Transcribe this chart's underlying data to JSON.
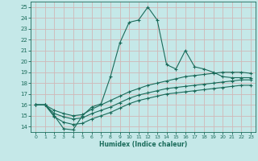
{
  "xlabel": "Humidex (Indice chaleur)",
  "ylabel": "",
  "xlim": [
    -0.5,
    23.5
  ],
  "ylim": [
    13.5,
    25.5
  ],
  "xticks": [
    0,
    1,
    2,
    3,
    4,
    5,
    6,
    7,
    8,
    9,
    10,
    11,
    12,
    13,
    14,
    15,
    16,
    17,
    18,
    19,
    20,
    21,
    22,
    23
  ],
  "yticks": [
    14,
    15,
    16,
    17,
    18,
    19,
    20,
    21,
    22,
    23,
    24,
    25
  ],
  "bg_color": "#c5e8e8",
  "line_color": "#1a6b5a",
  "grid_color": "#d0b8b8",
  "line1_x": [
    0,
    1,
    2,
    3,
    4,
    5,
    6,
    7,
    8,
    9,
    10,
    11,
    12,
    13,
    14,
    15,
    16,
    17,
    18,
    19,
    20,
    21,
    22,
    23
  ],
  "line1_y": [
    16.0,
    16.0,
    15.0,
    13.8,
    13.7,
    15.0,
    15.8,
    16.1,
    18.6,
    21.7,
    23.6,
    23.8,
    25.0,
    23.8,
    19.7,
    19.3,
    21.0,
    19.5,
    19.3,
    19.0,
    18.6,
    18.5,
    18.5,
    18.5
  ],
  "line2_x": [
    0,
    1,
    2,
    3,
    4,
    5,
    6,
    7,
    8,
    9,
    10,
    11,
    12,
    13,
    14,
    15,
    16,
    17,
    18,
    19,
    20,
    21,
    22,
    23
  ],
  "line2_y": [
    16.0,
    16.0,
    15.5,
    15.2,
    15.0,
    15.1,
    15.6,
    16.0,
    16.4,
    16.8,
    17.2,
    17.5,
    17.8,
    18.0,
    18.2,
    18.4,
    18.6,
    18.7,
    18.8,
    18.9,
    19.0,
    19.0,
    19.0,
    18.9
  ],
  "line3_x": [
    0,
    1,
    2,
    3,
    4,
    5,
    6,
    7,
    8,
    9,
    10,
    11,
    12,
    13,
    14,
    15,
    16,
    17,
    18,
    19,
    20,
    21,
    22,
    23
  ],
  "line3_y": [
    16.0,
    16.0,
    15.2,
    14.9,
    14.7,
    14.8,
    15.2,
    15.5,
    15.8,
    16.2,
    16.6,
    16.9,
    17.1,
    17.3,
    17.5,
    17.6,
    17.7,
    17.8,
    17.9,
    18.0,
    18.1,
    18.2,
    18.3,
    18.3
  ],
  "line4_x": [
    0,
    1,
    2,
    3,
    4,
    5,
    6,
    7,
    8,
    9,
    10,
    11,
    12,
    13,
    14,
    15,
    16,
    17,
    18,
    19,
    20,
    21,
    22,
    23
  ],
  "line4_y": [
    16.0,
    16.0,
    14.9,
    14.4,
    14.2,
    14.3,
    14.7,
    15.0,
    15.3,
    15.7,
    16.1,
    16.4,
    16.6,
    16.8,
    17.0,
    17.1,
    17.2,
    17.3,
    17.4,
    17.5,
    17.6,
    17.7,
    17.8,
    17.8
  ]
}
